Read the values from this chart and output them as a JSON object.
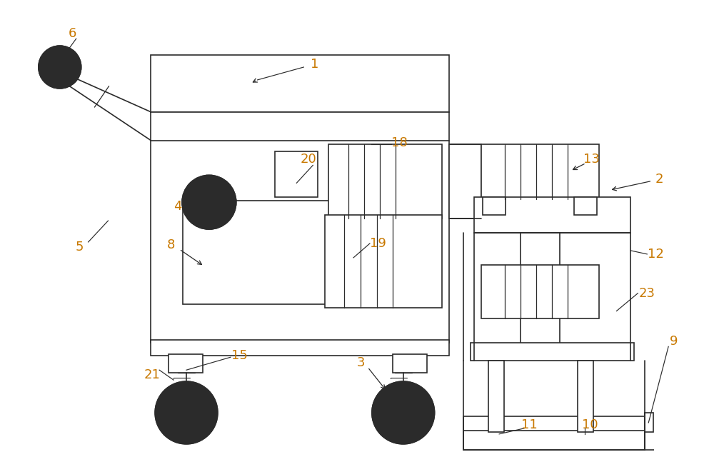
{
  "bg_color": "#ffffff",
  "line_color": "#2b2b2b",
  "label_color": "#c87800",
  "fig_width": 10.0,
  "fig_height": 6.61,
  "dpi": 100
}
